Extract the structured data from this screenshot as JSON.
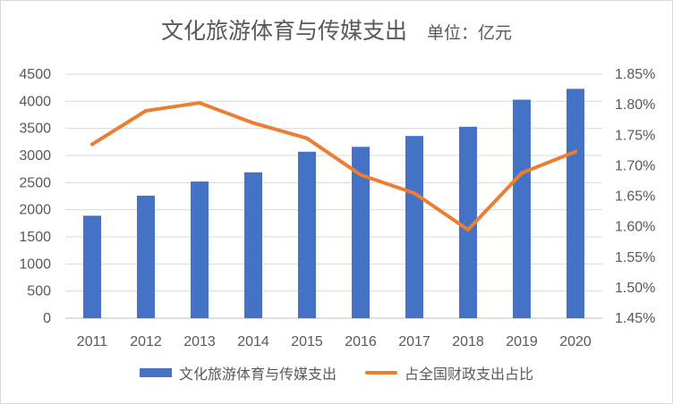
{
  "chart_data": {
    "type": "bar",
    "title": "文化旅游体育与传媒支出",
    "subtitle": "单位：亿元",
    "categories": [
      "2011",
      "2012",
      "2013",
      "2014",
      "2015",
      "2016",
      "2017",
      "2018",
      "2019",
      "2020"
    ],
    "series": [
      {
        "name": "文化旅游体育与传媒支出",
        "type": "bar",
        "axis": "left",
        "color": "#4472c4",
        "values": [
          1890,
          2260,
          2520,
          2690,
          3070,
          3160,
          3360,
          3530,
          4030,
          4230
        ]
      },
      {
        "name": "占全国财政支出占比",
        "type": "line",
        "axis": "right",
        "color": "#ed7d31",
        "values": [
          1.735,
          1.79,
          1.803,
          1.77,
          1.745,
          1.685,
          1.655,
          1.595,
          1.688,
          1.723
        ]
      }
    ],
    "y_left": {
      "ylim": [
        0,
        4500
      ],
      "ticks": [
        "0",
        "500",
        "1000",
        "1500",
        "2000",
        "2500",
        "3000",
        "3500",
        "4000",
        "4500"
      ]
    },
    "y_right": {
      "ylim": [
        1.45,
        1.85
      ],
      "ticks": [
        "1.45%",
        "1.50%",
        "1.55%",
        "1.60%",
        "1.65%",
        "1.70%",
        "1.75%",
        "1.80%",
        "1.85%"
      ]
    },
    "grid": true,
    "legend_position": "bottom"
  }
}
